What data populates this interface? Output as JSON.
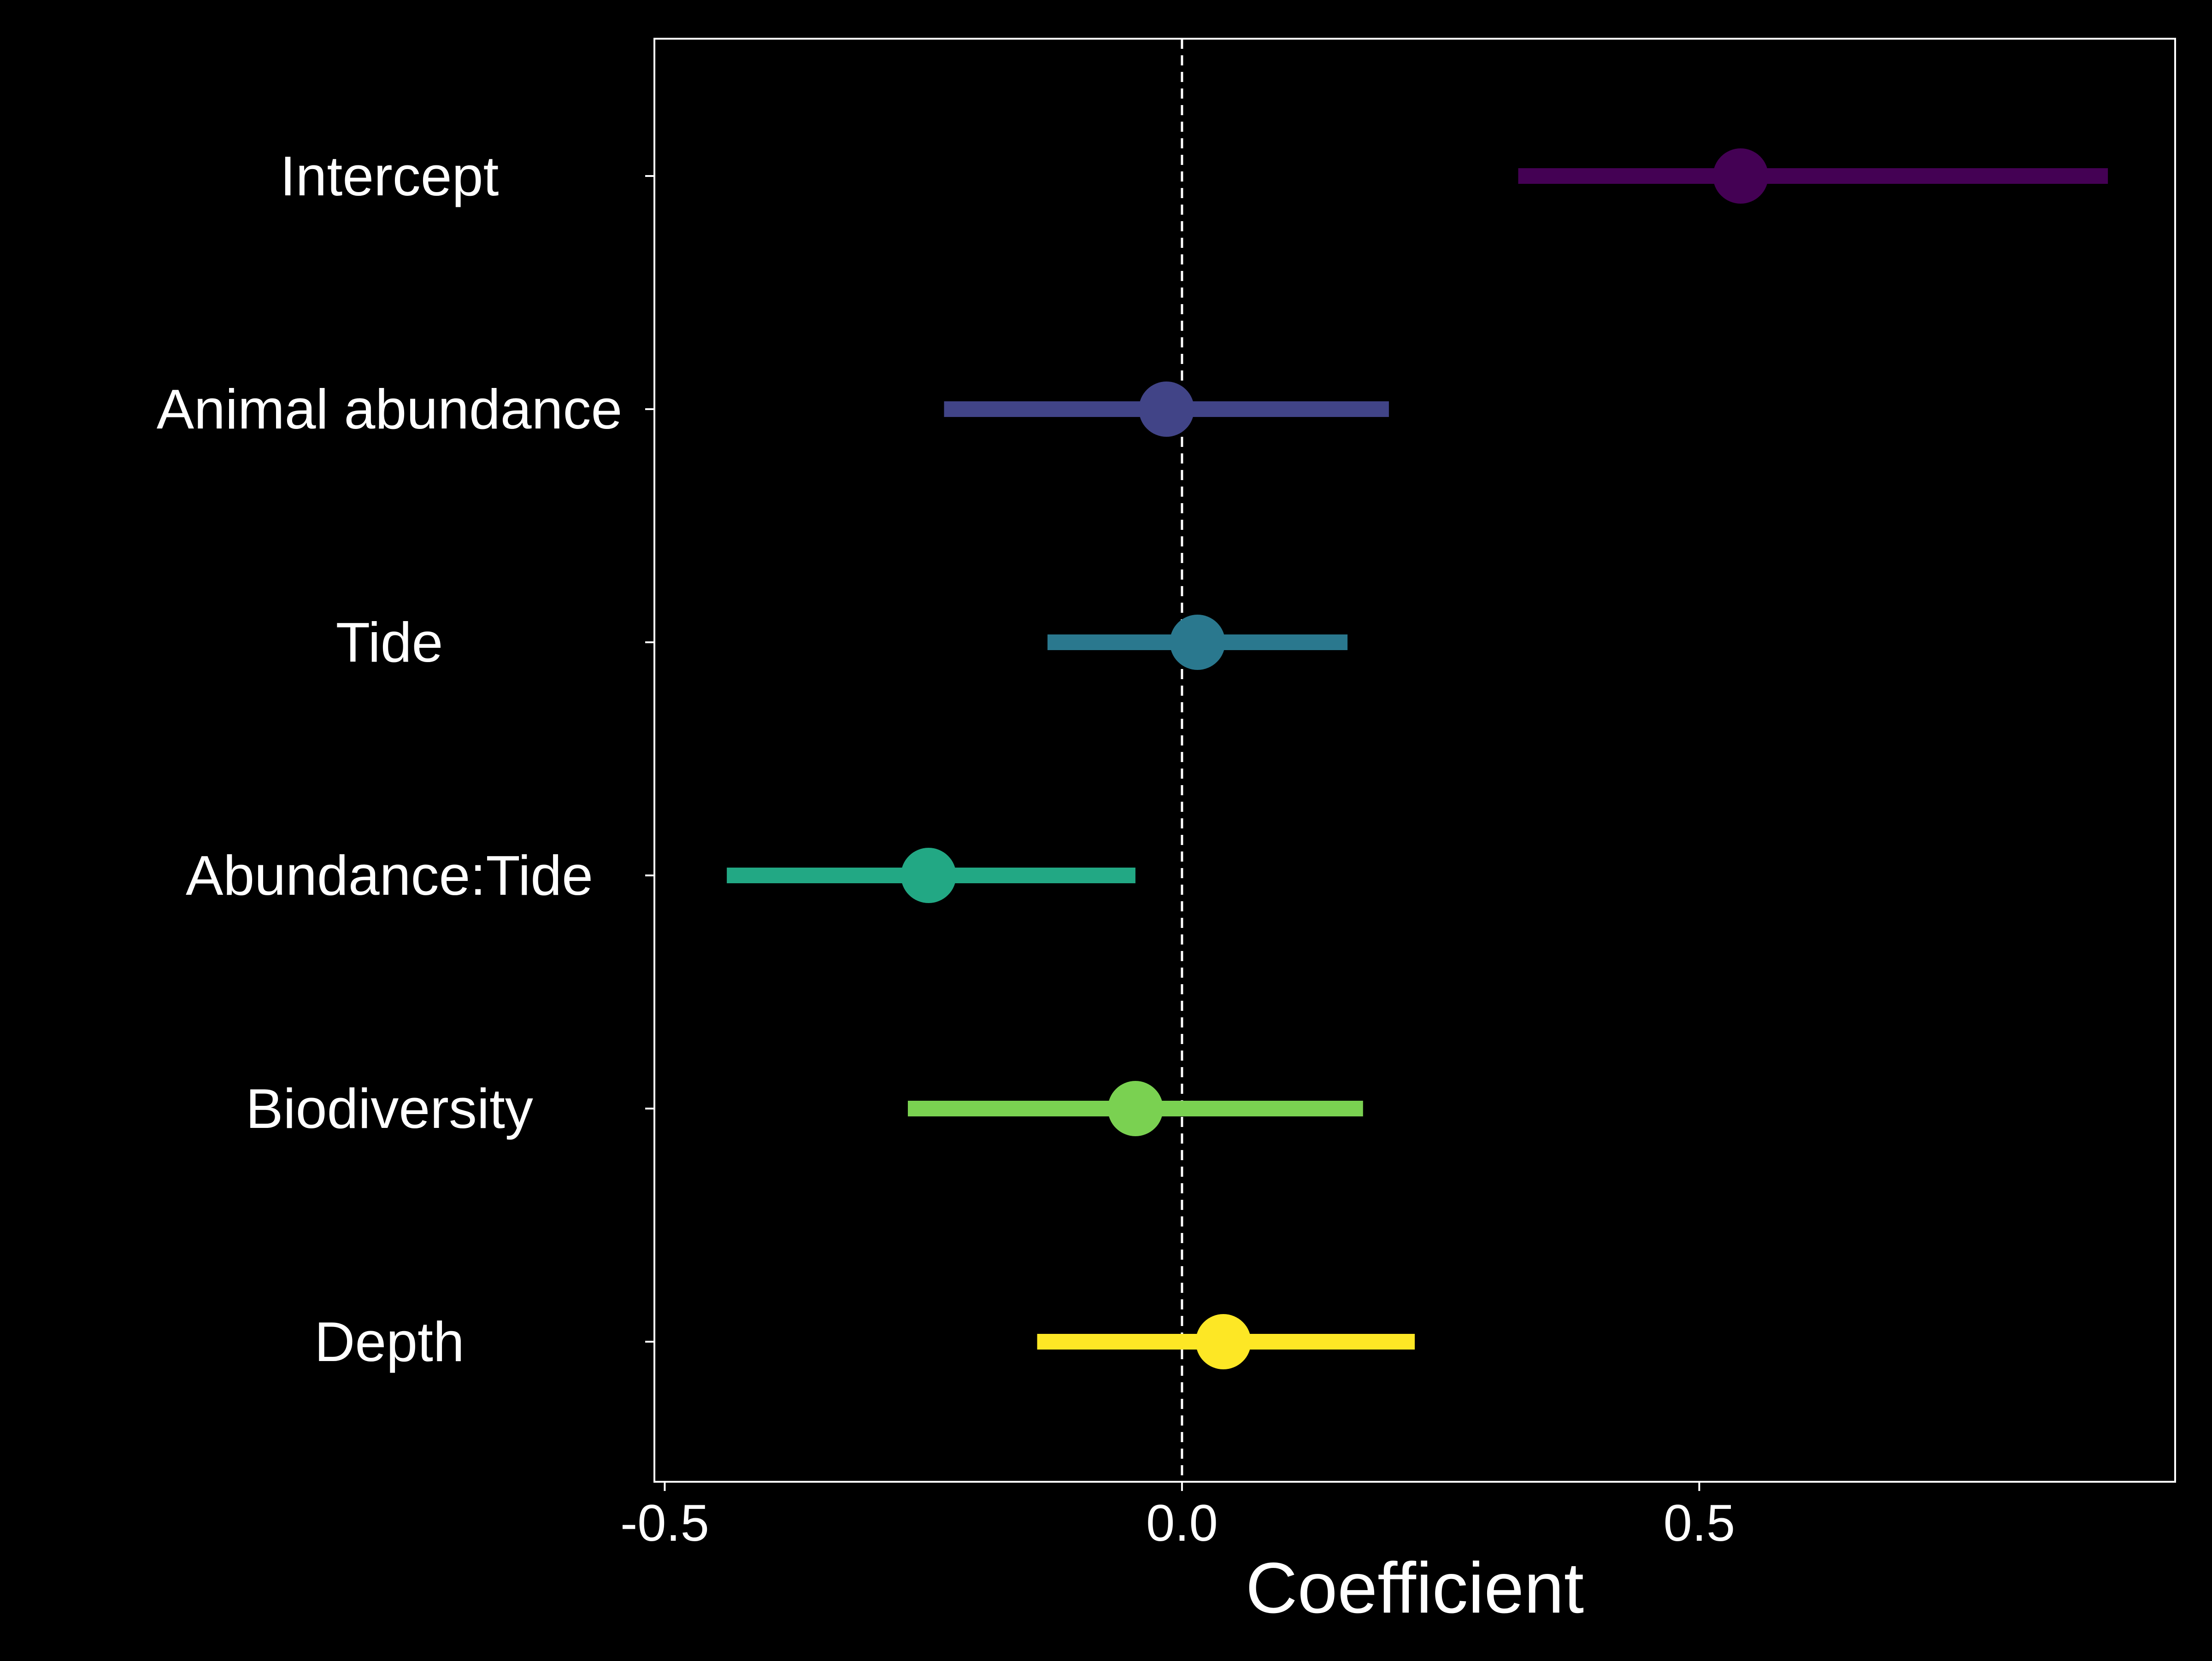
{
  "chart_data": {
    "type": "forest",
    "title": "",
    "xlabel": "Coefficient",
    "ylabel": "",
    "xlim": [
      -0.51,
      0.96
    ],
    "xticks": [
      {
        "value": -0.5,
        "label": "-0.5"
      },
      {
        "value": 0.0,
        "label": "0.0"
      },
      {
        "value": 0.5,
        "label": "0.5"
      }
    ],
    "reference_line": {
      "value": 0.0,
      "style": "dashed",
      "color": "#ffffff"
    },
    "grid": false,
    "legend": "none",
    "background": "#000000",
    "foreground": "#ffffff",
    "terms": [
      {
        "label": "Intercept",
        "estimate": 0.54,
        "lower": 0.325,
        "upper": 0.895,
        "color": "#440154"
      },
      {
        "label": "Animal abundance",
        "estimate": -0.015,
        "lower": -0.23,
        "upper": 0.2,
        "color": "#414487"
      },
      {
        "label": "Tide",
        "estimate": 0.015,
        "lower": -0.13,
        "upper": 0.16,
        "color": "#2a788e"
      },
      {
        "label": "Abundance:Tide",
        "estimate": -0.245,
        "lower": -0.44,
        "upper": -0.045,
        "color": "#22a884"
      },
      {
        "label": "Biodiversity",
        "estimate": -0.045,
        "lower": -0.265,
        "upper": 0.175,
        "color": "#7ad151"
      },
      {
        "label": "Depth",
        "estimate": 0.04,
        "lower": -0.14,
        "upper": 0.225,
        "color": "#fde725"
      }
    ]
  }
}
